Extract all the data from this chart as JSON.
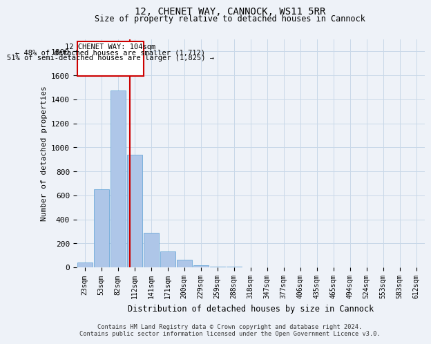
{
  "title": "12, CHENET WAY, CANNOCK, WS11 5RR",
  "subtitle": "Size of property relative to detached houses in Cannock",
  "xlabel": "Distribution of detached houses by size in Cannock",
  "ylabel": "Number of detached properties",
  "bar_color": "#aec6e8",
  "bar_edge_color": "#5a9fd4",
  "grid_color": "#c8d8e8",
  "background_color": "#eef2f8",
  "annotation_border_color": "#cc0000",
  "vline_color": "#cc0000",
  "footer_text": "Contains HM Land Registry data © Crown copyright and database right 2024.\nContains public sector information licensed under the Open Government Licence v3.0.",
  "annotation_line1": "12 CHENET WAY: 104sqm",
  "annotation_line2": "← 48% of detached houses are smaller (1,712)",
  "annotation_line3": "51% of semi-detached houses are larger (1,825) →",
  "categories": [
    "23sqm",
    "53sqm",
    "82sqm",
    "112sqm",
    "141sqm",
    "171sqm",
    "200sqm",
    "229sqm",
    "259sqm",
    "288sqm",
    "318sqm",
    "347sqm",
    "377sqm",
    "406sqm",
    "435sqm",
    "465sqm",
    "494sqm",
    "524sqm",
    "553sqm",
    "583sqm",
    "612sqm"
  ],
  "bar_heights": [
    40,
    650,
    1475,
    940,
    290,
    130,
    65,
    20,
    8,
    3,
    2,
    1,
    0,
    0,
    0,
    0,
    0,
    0,
    0,
    0,
    0
  ],
  "ylim": [
    0,
    1900
  ],
  "yticks": [
    0,
    200,
    400,
    600,
    800,
    1000,
    1200,
    1400,
    1600,
    1800
  ]
}
